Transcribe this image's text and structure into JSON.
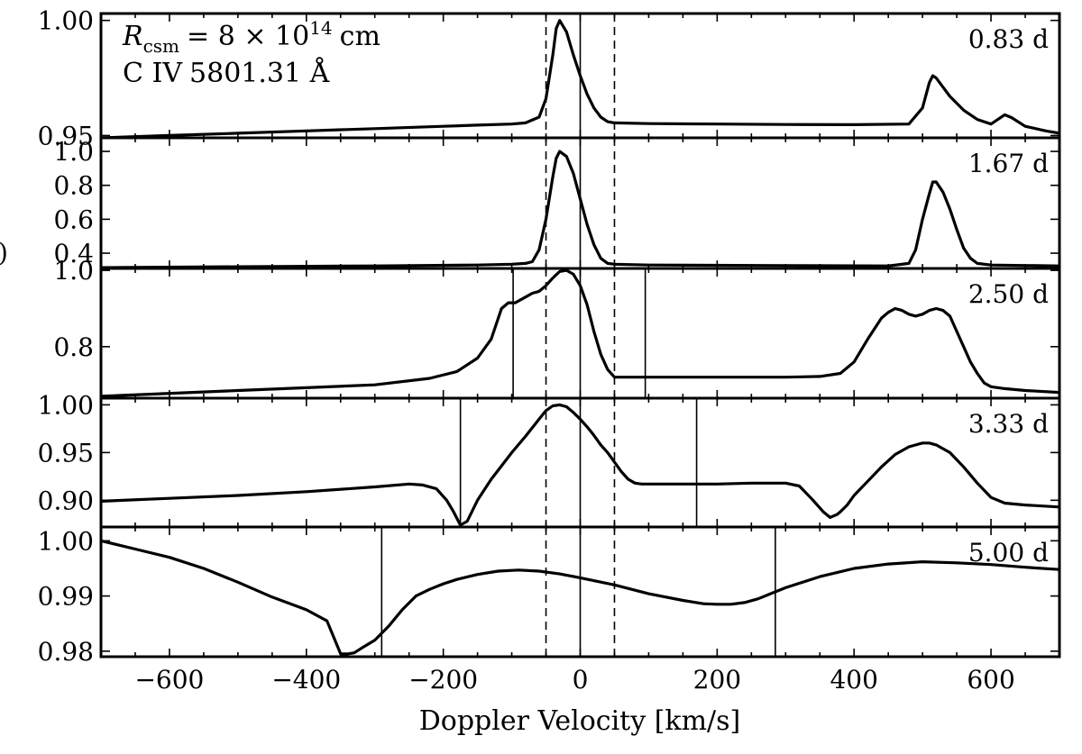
{
  "chart_data": {
    "type": "line",
    "xlabel": "Doppler Velocity [km/s]",
    "xlim": [
      -700,
      700
    ],
    "xticks": [
      -600,
      -400,
      -200,
      0,
      200,
      400,
      600
    ],
    "xtick_labels": [
      "−600",
      "−400",
      "−200",
      "0",
      "200",
      "400",
      "600"
    ],
    "ylabel_partial": ")",
    "annotation": {
      "r_symbol": "R",
      "r_sub": "csm",
      "r_equation": "= 8 × 10",
      "r_exp": "14",
      "r_unit": "cm",
      "line_ion": "C IV",
      "line_wavelength": "5801.31 Å"
    },
    "reference_lines": {
      "solid": [
        0
      ],
      "dashed": [
        -50,
        50
      ]
    },
    "panels": [
      {
        "epoch": "0.83 d",
        "ylim": [
          0.949,
          1.003
        ],
        "yticks": [
          0.95,
          1.0
        ],
        "ytick_labels": [
          "0.95",
          "1.00"
        ],
        "velocity_markers": [],
        "x": [
          -700,
          -600,
          -500,
          -400,
          -300,
          -200,
          -150,
          -100,
          -80,
          -60,
          -50,
          -40,
          -35,
          -30,
          -20,
          -10,
          0,
          10,
          20,
          30,
          40,
          50,
          100,
          200,
          300,
          400,
          480,
          500,
          510,
          515,
          520,
          530,
          540,
          560,
          580,
          600,
          610,
          620,
          630,
          650,
          680,
          700
        ],
        "y": [
          0.949,
          0.95,
          0.951,
          0.952,
          0.953,
          0.954,
          0.9545,
          0.955,
          0.9555,
          0.958,
          0.966,
          0.985,
          0.9965,
          1.0,
          0.995,
          0.985,
          0.976,
          0.968,
          0.962,
          0.958,
          0.956,
          0.9555,
          0.9552,
          0.955,
          0.9548,
          0.9547,
          0.955,
          0.962,
          0.973,
          0.976,
          0.975,
          0.971,
          0.967,
          0.961,
          0.957,
          0.955,
          0.957,
          0.959,
          0.9578,
          0.954,
          0.952,
          0.951
        ]
      },
      {
        "epoch": "1.67 d",
        "ylim": [
          0.31,
          1.08
        ],
        "yticks": [
          0.4,
          0.6,
          0.8,
          1.0
        ],
        "ytick_labels": [
          "0.4",
          "0.6",
          "0.8",
          "1.0"
        ],
        "velocity_markers": [],
        "x": [
          -700,
          -500,
          -300,
          -150,
          -100,
          -80,
          -70,
          -60,
          -50,
          -40,
          -35,
          -30,
          -20,
          -10,
          0,
          10,
          20,
          30,
          40,
          50,
          100,
          300,
          450,
          480,
          490,
          500,
          510,
          515,
          520,
          530,
          540,
          550,
          560,
          570,
          580,
          600,
          700
        ],
        "y": [
          0.315,
          0.32,
          0.325,
          0.33,
          0.335,
          0.34,
          0.35,
          0.42,
          0.6,
          0.85,
          0.96,
          1.0,
          0.97,
          0.87,
          0.72,
          0.57,
          0.45,
          0.37,
          0.34,
          0.335,
          0.33,
          0.327,
          0.325,
          0.34,
          0.42,
          0.6,
          0.75,
          0.82,
          0.82,
          0.76,
          0.66,
          0.54,
          0.43,
          0.37,
          0.34,
          0.33,
          0.325
        ]
      },
      {
        "epoch": "2.50 d",
        "ylim": [
          0.665,
          1.005
        ],
        "yticks": [
          0.8,
          1.0
        ],
        "ytick_labels": [
          "0.8",
          "1.0"
        ],
        "velocity_markers": [
          -98,
          95
        ],
        "x": [
          -700,
          -500,
          -300,
          -220,
          -180,
          -150,
          -130,
          -115,
          -105,
          -95,
          -80,
          -70,
          -60,
          -50,
          -40,
          -30,
          -20,
          -10,
          0,
          10,
          20,
          30,
          40,
          50,
          100,
          200,
          300,
          350,
          380,
          400,
          420,
          440,
          450,
          460,
          470,
          480,
          490,
          500,
          510,
          520,
          530,
          540,
          550,
          560,
          570,
          580,
          590,
          600,
          620,
          650,
          700
        ],
        "y": [
          0.67,
          0.685,
          0.7,
          0.717,
          0.735,
          0.77,
          0.82,
          0.9,
          0.915,
          0.915,
          0.93,
          0.94,
          0.945,
          0.96,
          0.98,
          0.997,
          1.0,
          0.99,
          0.96,
          0.91,
          0.84,
          0.78,
          0.74,
          0.72,
          0.72,
          0.72,
          0.72,
          0.722,
          0.73,
          0.76,
          0.82,
          0.875,
          0.89,
          0.9,
          0.895,
          0.885,
          0.88,
          0.885,
          0.895,
          0.9,
          0.895,
          0.88,
          0.84,
          0.8,
          0.76,
          0.73,
          0.705,
          0.695,
          0.69,
          0.685,
          0.68
        ]
      },
      {
        "epoch": "3.33 d",
        "ylim": [
          0.872,
          1.007
        ],
        "yticks": [
          0.9,
          0.95,
          1.0
        ],
        "ytick_labels": [
          "0.90",
          "0.95",
          "1.00"
        ],
        "velocity_markers": [
          -175,
          170
        ],
        "x": [
          -700,
          -600,
          -500,
          -400,
          -300,
          -250,
          -230,
          -210,
          -195,
          -185,
          -175,
          -165,
          -150,
          -130,
          -100,
          -80,
          -60,
          -50,
          -40,
          -30,
          -20,
          -10,
          0,
          10,
          20,
          30,
          40,
          50,
          60,
          70,
          80,
          90,
          100,
          150,
          200,
          250,
          300,
          320,
          340,
          355,
          365,
          375,
          380,
          390,
          400,
          420,
          440,
          460,
          480,
          500,
          510,
          520,
          540,
          560,
          580,
          600,
          620,
          650,
          700
        ],
        "y": [
          0.899,
          0.902,
          0.905,
          0.909,
          0.914,
          0.917,
          0.916,
          0.912,
          0.9,
          0.888,
          0.874,
          0.878,
          0.9,
          0.922,
          0.95,
          0.967,
          0.985,
          0.994,
          0.999,
          1.0,
          0.998,
          0.992,
          0.985,
          0.977,
          0.968,
          0.958,
          0.95,
          0.94,
          0.93,
          0.922,
          0.918,
          0.917,
          0.917,
          0.917,
          0.917,
          0.918,
          0.918,
          0.915,
          0.9,
          0.888,
          0.882,
          0.885,
          0.888,
          0.895,
          0.905,
          0.92,
          0.935,
          0.948,
          0.956,
          0.96,
          0.96,
          0.958,
          0.95,
          0.935,
          0.918,
          0.903,
          0.897,
          0.895,
          0.893
        ]
      },
      {
        "epoch": "5.00 d",
        "ylim": [
          0.979,
          1.0025
        ],
        "yticks": [
          0.98,
          0.99,
          1.0
        ],
        "ytick_labels": [
          "0.98",
          "0.99",
          "1.00"
        ],
        "velocity_markers": [
          -290,
          285
        ],
        "x": [
          -700,
          -650,
          -600,
          -550,
          -500,
          -450,
          -400,
          -370,
          -350,
          -340,
          -330,
          -320,
          -300,
          -280,
          -260,
          -240,
          -220,
          -200,
          -180,
          -150,
          -120,
          -90,
          -60,
          -30,
          0,
          50,
          100,
          150,
          180,
          200,
          220,
          240,
          260,
          280,
          300,
          350,
          400,
          450,
          500,
          550,
          600,
          650,
          700
        ],
        "y": [
          1.0,
          0.9985,
          0.997,
          0.995,
          0.9925,
          0.9898,
          0.9875,
          0.9855,
          0.9795,
          0.9795,
          0.9797,
          0.9805,
          0.982,
          0.9845,
          0.9875,
          0.99,
          0.9912,
          0.9922,
          0.993,
          0.9939,
          0.9945,
          0.9947,
          0.9945,
          0.994,
          0.9933,
          0.992,
          0.9904,
          0.9892,
          0.9886,
          0.9885,
          0.9885,
          0.9888,
          0.9895,
          0.9905,
          0.9915,
          0.9935,
          0.995,
          0.9958,
          0.9962,
          0.996,
          0.9957,
          0.9952,
          0.9948
        ]
      }
    ]
  }
}
